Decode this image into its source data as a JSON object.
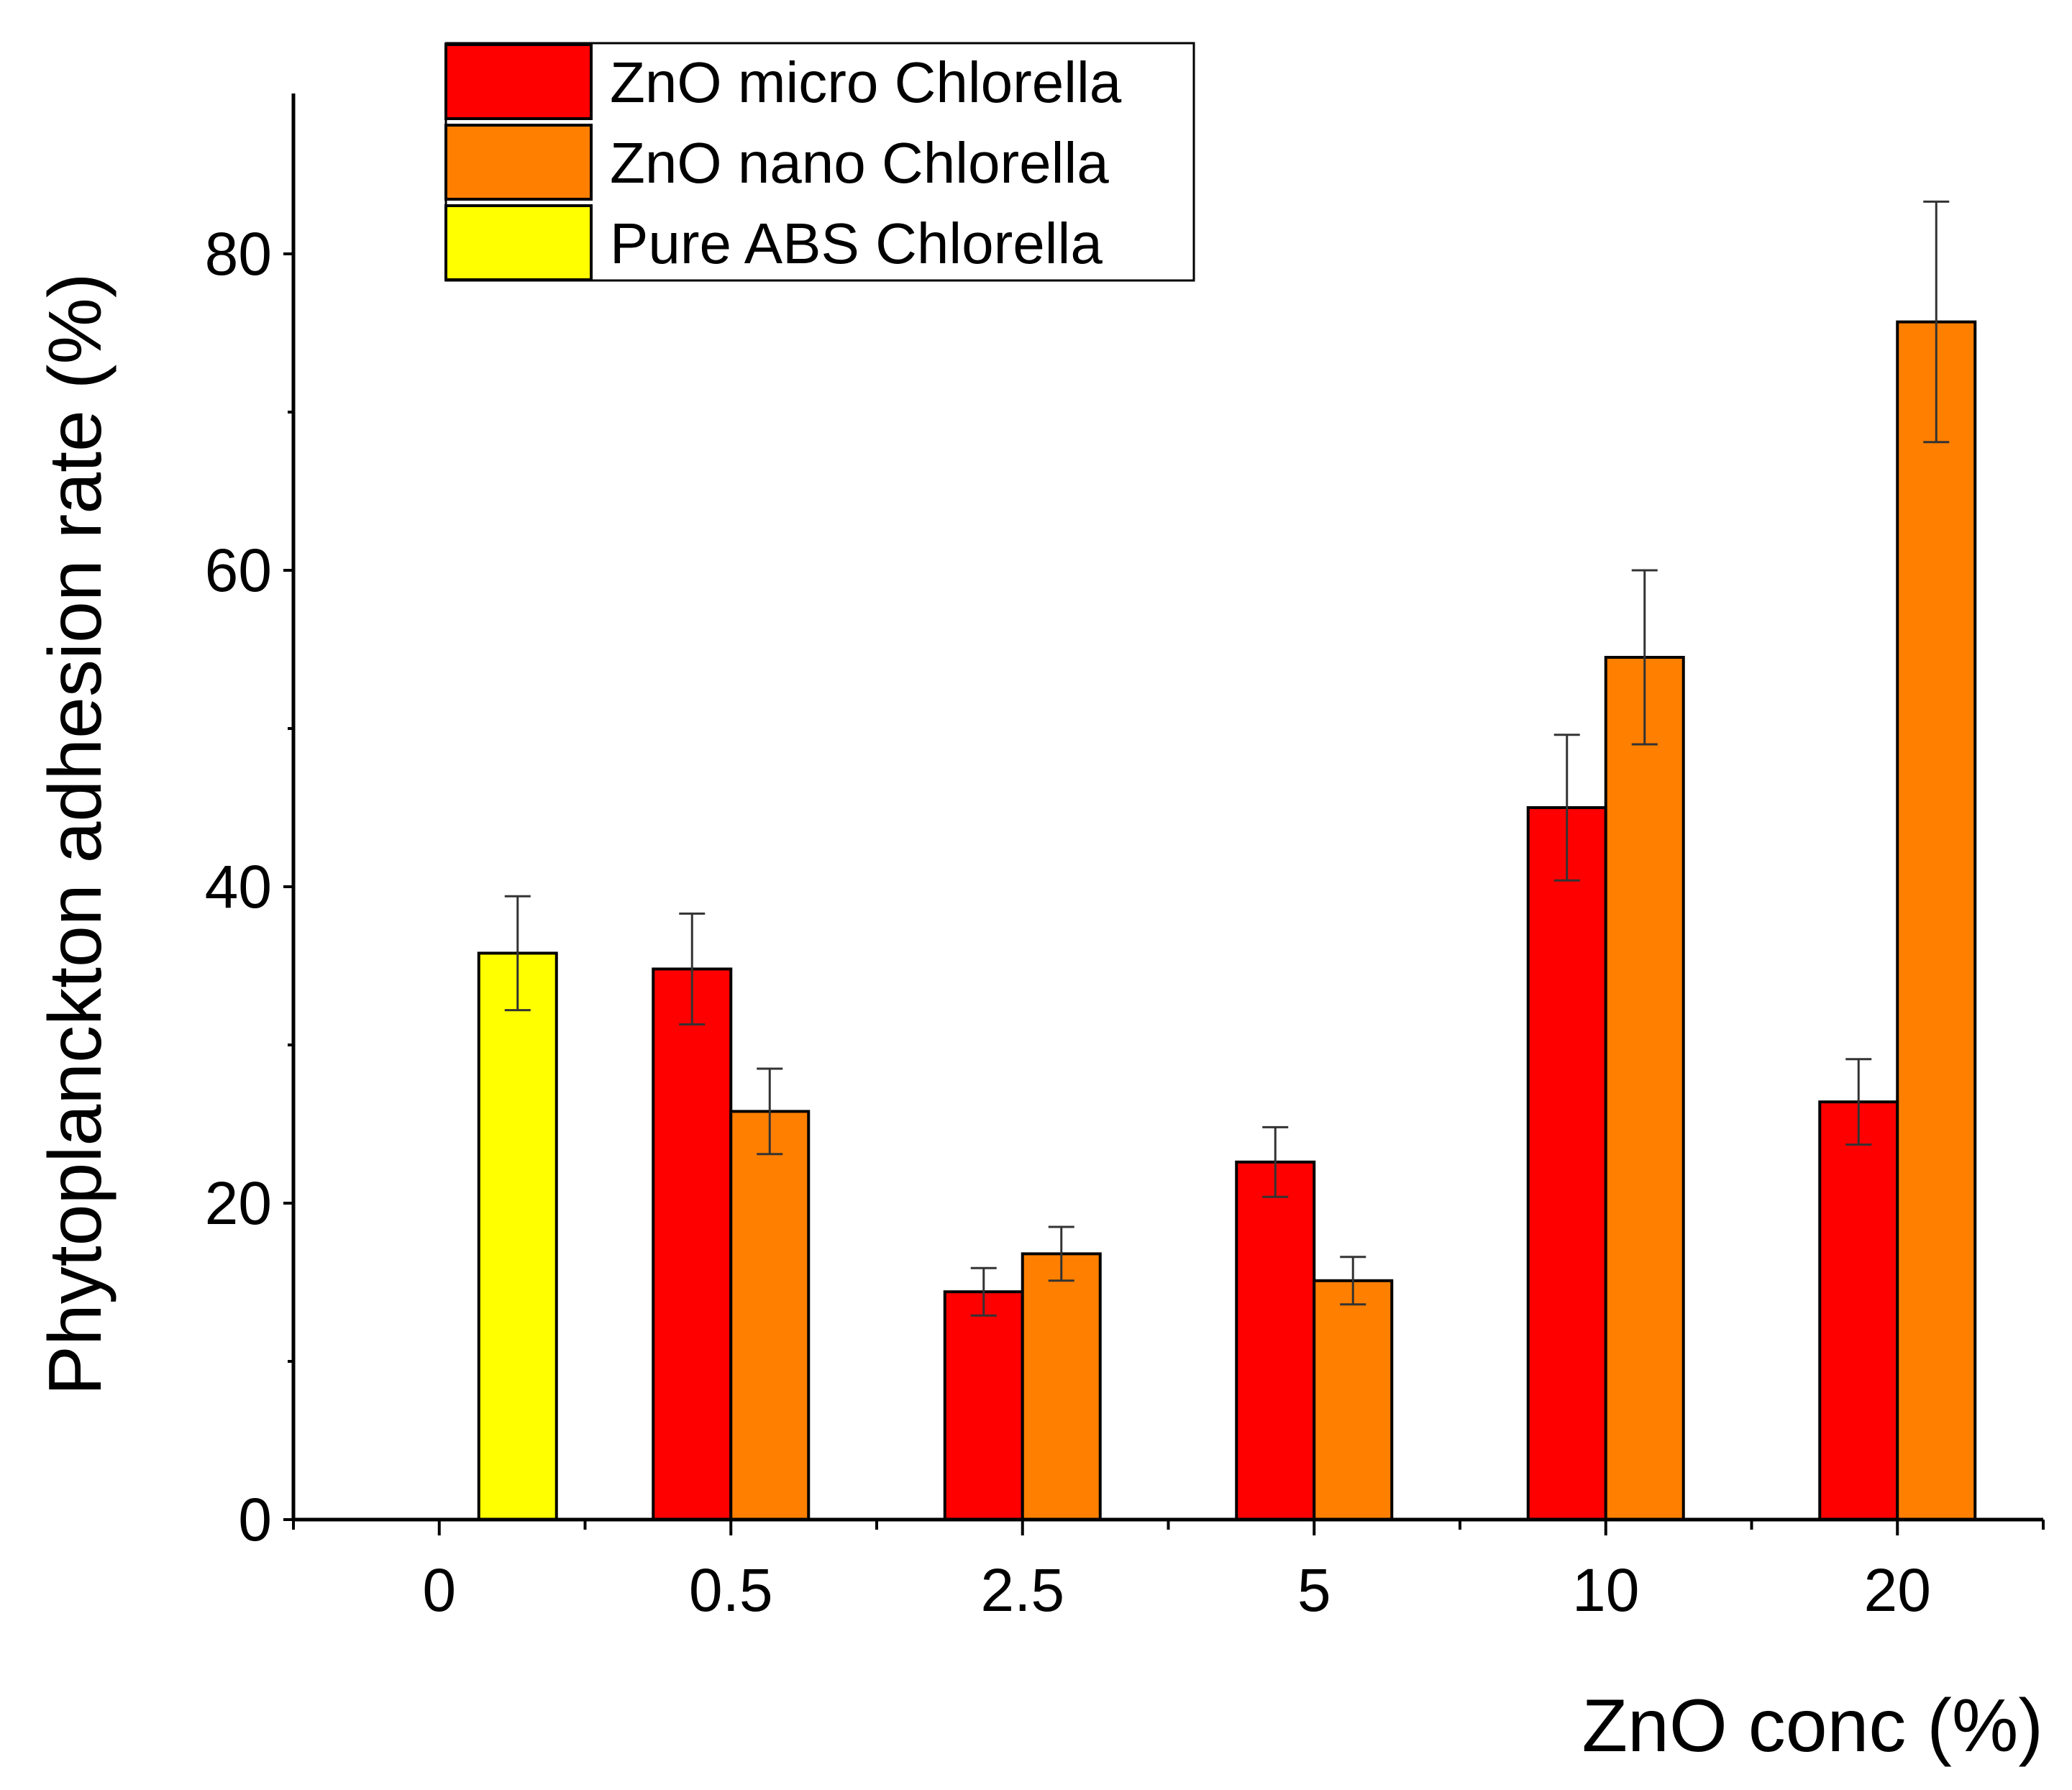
{
  "chart_data": {
    "type": "bar",
    "title": "",
    "xlabel": "ZnO conc (%)",
    "ylabel": "Phytoplanckton adhesion rate (%)",
    "ylim": [
      0,
      90
    ],
    "yticks": [
      0,
      20,
      40,
      60,
      80
    ],
    "categories": [
      "0",
      "0.5",
      "2.5",
      "5",
      "10",
      "20"
    ],
    "series": [
      {
        "name": "ZnO micro Chlorella",
        "color": "#ff0000",
        "values": [
          null,
          34.8,
          14.4,
          22.6,
          45.0,
          26.4
        ],
        "errors": [
          null,
          3.5,
          1.5,
          2.2,
          4.6,
          2.7
        ]
      },
      {
        "name": "ZnO nano Chlorella",
        "color": "#ff7f00",
        "values": [
          null,
          25.8,
          16.8,
          15.1,
          54.5,
          75.7
        ],
        "errors": [
          null,
          2.7,
          1.7,
          1.5,
          5.5,
          7.6
        ]
      },
      {
        "name": "Pure ABS Chlorella",
        "color": "#ffff00",
        "values": [
          35.8,
          null,
          null,
          null,
          null,
          null
        ],
        "errors": [
          3.6,
          null,
          null,
          null,
          null,
          null
        ]
      }
    ],
    "legend_position": "top-left"
  }
}
